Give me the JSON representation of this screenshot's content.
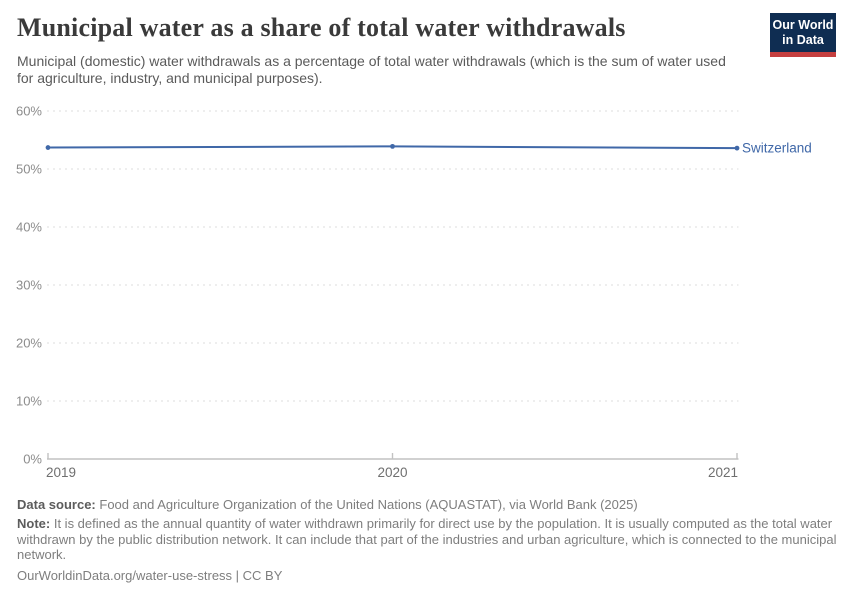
{
  "header": {
    "title": "Municipal water as a share of total water withdrawals",
    "subtitle": "Municipal (domestic) water withdrawals as a percentage of total water withdrawals (which is the sum of water used for agriculture, industry, and municipal purposes).",
    "logo": {
      "line1": "Our World",
      "line2": "in Data",
      "bg_color": "#0f2d52",
      "accent_color": "#c53f3f"
    }
  },
  "chart_data": {
    "type": "line",
    "title": "Municipal water as a share of total water withdrawals",
    "x": [
      2019,
      2020,
      2021
    ],
    "series": [
      {
        "name": "Switzerland",
        "values": [
          53.7,
          53.9,
          53.6
        ],
        "color": "#4068a8"
      }
    ],
    "xlabel": "",
    "ylabel": "",
    "ylim": [
      0,
      60
    ],
    "yticks": [
      0,
      10,
      20,
      30,
      40,
      50,
      60
    ],
    "ytick_labels": [
      "0%",
      "10%",
      "20%",
      "30%",
      "40%",
      "50%",
      "60%"
    ],
    "xticks": [
      2019,
      2020,
      2021
    ],
    "xtick_labels": [
      "2019",
      "2020",
      "2021"
    ],
    "grid": "horizontal dashed",
    "legend": "inline label at line end",
    "axis_label_color": "#8c8c8c",
    "xtick_label_color": "#6f6f6f",
    "grid_color": "#dedede",
    "axis_line_color": "#c2c2c2"
  },
  "footer": {
    "data_source_label": "Data source:",
    "data_source": "Food and Agriculture Organization of the United Nations (AQUASTAT), via World Bank (2025)",
    "note_label": "Note:",
    "note": "It is defined as the annual quantity of water withdrawn primarily for direct use by the population. It is usually computed as the total water withdrawn by the public distribution network. It can include that part of the industries and urban agriculture, which is connected to the municipal network.",
    "citation": "OurWorldinData.org/water-use-stress | CC BY"
  }
}
